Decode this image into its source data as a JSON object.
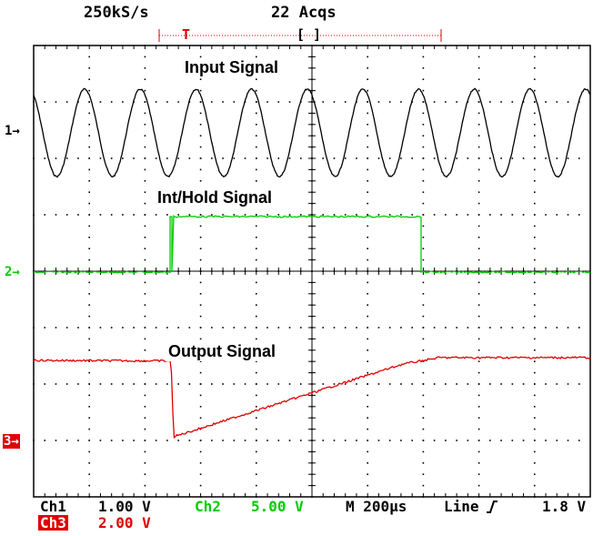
{
  "header": {
    "sample_rate": "250kS/s",
    "acquisitions": "22 Acqs",
    "trigger_marker": "T",
    "record_bracket": "[    ]"
  },
  "traces": {
    "input_label": "Input Signal",
    "hold_label": "Int/Hold Signal",
    "output_label": "Output Signal"
  },
  "markers": {
    "ch1": "1→",
    "ch2": "2→",
    "ch3": "3→"
  },
  "footer": {
    "ch1_name": "Ch1",
    "ch1_scale": "1.00 V",
    "ch2_name": "Ch2",
    "ch2_scale": "5.00 V",
    "timebase": "M  200µs",
    "trigger_source": "Line",
    "trigger_slope_icon": "rising-edge-icon",
    "trigger_level": "1.8 V",
    "ch3_name": "Ch3",
    "ch3_scale": "2.00 V"
  },
  "colors": {
    "ch1": "#000000",
    "ch2": "#00cc00",
    "ch3": "#e00000",
    "grid": "#000000"
  },
  "waveform": {
    "input_cycles": 10,
    "hold_high_from_div": 2.5,
    "hold_high_to_div": 6.8
  }
}
